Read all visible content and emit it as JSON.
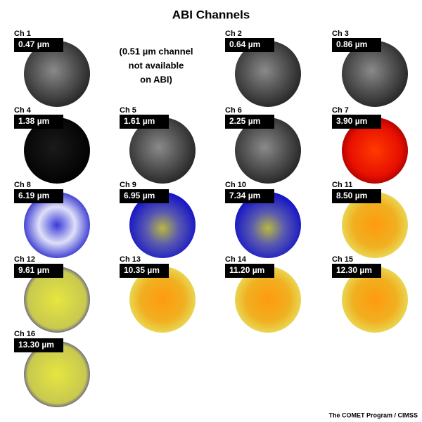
{
  "title": "ABI Channels",
  "panels": [
    {
      "channel": "Ch 1",
      "wavelength": "0.47 µm"
    },
    {
      "channel": "Ch 2",
      "wavelength": "0.64 µm"
    },
    {
      "channel": "Ch 3",
      "wavelength": "0.86 µm"
    },
    {
      "channel": "Ch 4",
      "wavelength": "1.38 µm"
    },
    {
      "channel": "Ch 5",
      "wavelength": "1.61 µm"
    },
    {
      "channel": "Ch 6",
      "wavelength": "2.25 µm"
    },
    {
      "channel": "Ch 7",
      "wavelength": "3.90 µm"
    },
    {
      "channel": "Ch 8",
      "wavelength": "6.19 µm"
    },
    {
      "channel": "Ch 9",
      "wavelength": "6.95 µm"
    },
    {
      "channel": "Ch 10",
      "wavelength": "7.34 µm"
    },
    {
      "channel": "Ch 11",
      "wavelength": "8.50 µm"
    },
    {
      "channel": "Ch 12",
      "wavelength": "9.61 µm"
    },
    {
      "channel": "Ch 13",
      "wavelength": "10.35 µm"
    },
    {
      "channel": "Ch 14",
      "wavelength": "11.20 µm"
    },
    {
      "channel": "Ch 15",
      "wavelength": "12.30 µm"
    },
    {
      "channel": "Ch 16",
      "wavelength": "13.30 µm"
    }
  ],
  "note": [
    "(0.51 µm channel",
    "not available",
    "on ABI)"
  ],
  "credit": "The COMET Program / CIMSS"
}
